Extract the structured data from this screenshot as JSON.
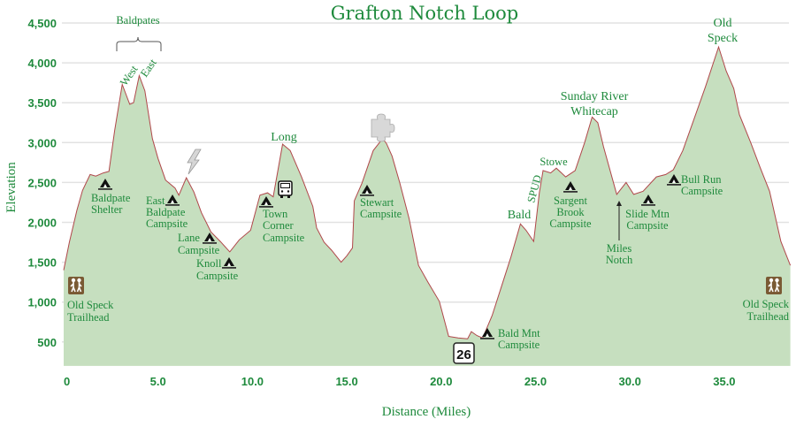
{
  "chart_data": {
    "type": "area",
    "title": "Grafton Notch Loop",
    "xlabel": "Distance (Miles)",
    "ylabel": "Elevation",
    "xlim": [
      0,
      38.6
    ],
    "ylim": [
      200,
      4500
    ],
    "grid": true,
    "colors": {
      "fill": "#c6dfbf",
      "line": "#b0474a",
      "text": "#1e8a3c",
      "grid": "#e2e2e2"
    },
    "yticks": [
      {
        "value": 500,
        "label": "500"
      },
      {
        "value": 1000,
        "label": "1,000"
      },
      {
        "value": 1500,
        "label": "1,500"
      },
      {
        "value": 2000,
        "label": "2,000"
      },
      {
        "value": 2500,
        "label": "2,500"
      },
      {
        "value": 3000,
        "label": "3,000"
      },
      {
        "value": 3500,
        "label": "3,500"
      },
      {
        "value": 4000,
        "label": "4,000"
      },
      {
        "value": 4500,
        "label": "4,500"
      }
    ],
    "xticks": [
      {
        "value": 0,
        "label": "0"
      },
      {
        "value": 5,
        "label": "5.0"
      },
      {
        "value": 10,
        "label": "10.0"
      },
      {
        "value": 15,
        "label": "15.0"
      },
      {
        "value": 20,
        "label": "20.0"
      },
      {
        "value": 25,
        "label": "25.0"
      },
      {
        "value": 30,
        "label": "30.0"
      },
      {
        "value": 35,
        "label": "35.0"
      }
    ],
    "profile": {
      "x": [
        0,
        0.3,
        0.7,
        1.0,
        1.4,
        1.7,
        2.1,
        2.4,
        2.7,
        3.1,
        3.5,
        3.7,
        4.0,
        4.3,
        4.7,
        5.0,
        5.4,
        5.9,
        6.1,
        6.5,
        6.9,
        7.3,
        7.8,
        8.3,
        8.8,
        9.3,
        9.9,
        10.4,
        10.8,
        11.1,
        11.6,
        12.0,
        12.6,
        13.2,
        13.4,
        13.8,
        14.2,
        14.7,
        15.0,
        15.3,
        15.4,
        15.8,
        16.4,
        16.9,
        17.1,
        17.4,
        17.8,
        18.3,
        18.8,
        19.3,
        19.9,
        20.4,
        20.9,
        21.4,
        21.6,
        21.9,
        22.2,
        22.7,
        23.2,
        23.7,
        24.2,
        24.5,
        24.9,
        25.2,
        25.4,
        25.8,
        26.1,
        26.6,
        27.1,
        27.6,
        28.0,
        28.3,
        28.6,
        29.3,
        29.8,
        30.2,
        30.7,
        31.4,
        31.9,
        32.3,
        32.8,
        33.3,
        34.0,
        34.7,
        35.1,
        35.5,
        35.8,
        36.4,
        36.9,
        37.4,
        38.0,
        38.5
      ],
      "y": [
        1400,
        1750,
        2150,
        2400,
        2600,
        2580,
        2620,
        2640,
        3150,
        3730,
        3480,
        3500,
        3840,
        3650,
        3050,
        2800,
        2530,
        2430,
        2340,
        2560,
        2380,
        2120,
        1880,
        1760,
        1630,
        1780,
        1900,
        2340,
        2370,
        2320,
        2980,
        2900,
        2570,
        2200,
        1930,
        1750,
        1650,
        1500,
        1580,
        1680,
        2270,
        2490,
        2900,
        3050,
        2990,
        2830,
        2500,
        2050,
        1460,
        1250,
        1010,
        570,
        550,
        540,
        630,
        580,
        550,
        830,
        1200,
        1570,
        1980,
        1900,
        1760,
        2370,
        2650,
        2620,
        2680,
        2570,
        2650,
        3000,
        3320,
        3250,
        2950,
        2350,
        2500,
        2350,
        2390,
        2570,
        2600,
        2660,
        2900,
        3230,
        3700,
        4200,
        3900,
        3680,
        3350,
        3000,
        2690,
        2390,
        1760,
        1460
      ]
    },
    "annotations": {
      "baldpates": "Baldpates",
      "west": "West",
      "east": "East",
      "baldpate_shelter": [
        "Baldpate",
        "Shelter"
      ],
      "east_baldpate_campsite": [
        "East",
        "Baldpate",
        "Campsite"
      ],
      "lane_campsite": [
        "Lane",
        "Campsite"
      ],
      "knoll_campsite": [
        "Knoll",
        "Campsite"
      ],
      "long": "Long",
      "town_corner_campsite": [
        "Town",
        "Corner",
        "Campsite"
      ],
      "stewart_campsite": [
        "Stewart",
        "Campsite"
      ],
      "bald": "Bald",
      "spud": "SPUD",
      "stowe": "Stowe",
      "sunday_river_whitecap": [
        "Sunday River",
        "Whitecap"
      ],
      "sargent_brook_campsite": [
        "Sargent",
        "Brook",
        "Campsite"
      ],
      "miles_notch": [
        "Miles",
        "Notch"
      ],
      "slide_mtn_campsite": [
        "Slide Mtn",
        "Campsite"
      ],
      "bull_run_campsite": [
        "Bull Run",
        "Campsite"
      ],
      "old_speck": [
        "Old",
        "Speck"
      ],
      "bald_mnt_campsite": [
        "Bald Mnt",
        "Campsite"
      ],
      "route_shield": "26",
      "trailhead_start": [
        "Old Speck",
        "Trailhead"
      ],
      "trailhead_end": [
        "Old Speck",
        "Trailhead"
      ]
    }
  }
}
